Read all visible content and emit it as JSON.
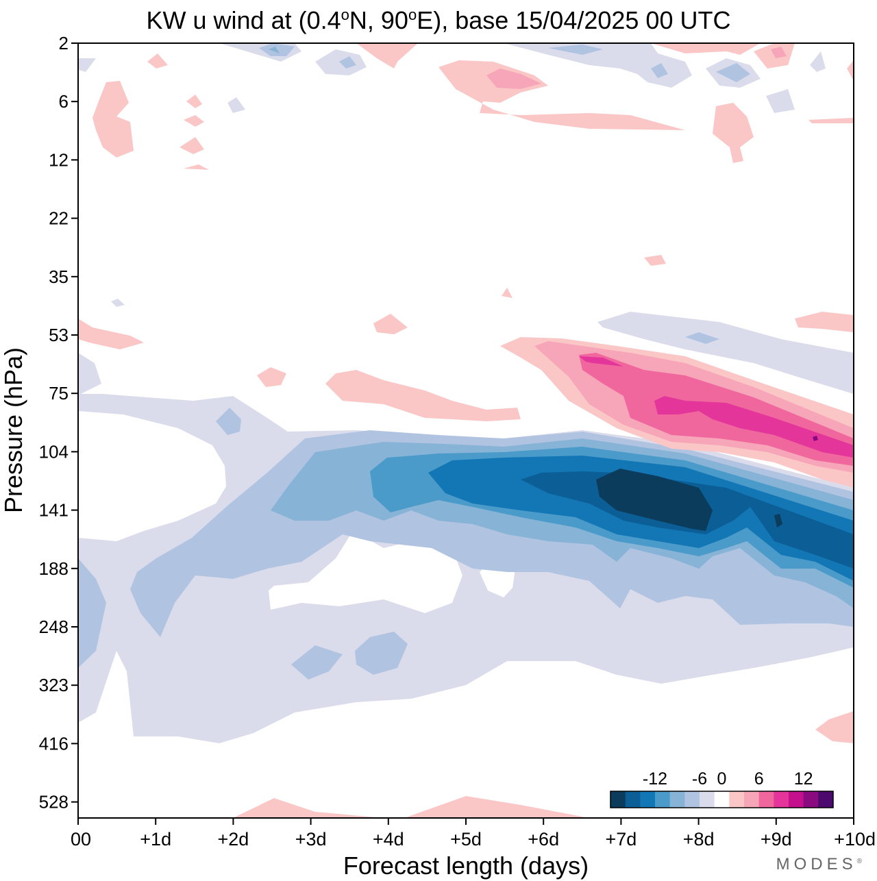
{
  "title": {
    "prefix": "KW u wind at (0.4",
    "deg1": "o",
    "middle": "N, 90",
    "deg2": "o",
    "suffix": "E),  base 15/04/2025  00 UTC"
  },
  "brand": {
    "name": "MODES",
    "mark": "®"
  },
  "chart_data": {
    "type": "heatmap",
    "subtype": "filled-contour (time-pressure cross section)",
    "title": "KW u wind at (0.4°N, 90°E),  base 15/04/2025  00 UTC",
    "xlabel": "Forecast length (days)",
    "ylabel": "Pressure (hPa)",
    "x_ticks": [
      "00",
      "+1d",
      "+2d",
      "+3d",
      "+4d",
      "+5d",
      "+6d",
      "+7d",
      "+8d",
      "+9d",
      "+10d"
    ],
    "x_range_days": [
      0,
      10
    ],
    "y_ticks": [
      "2",
      "6",
      "12",
      "22",
      "35",
      "53",
      "75",
      "104",
      "141",
      "188",
      "248",
      "323",
      "416",
      "528"
    ],
    "y_axis": "pressure, increasing downward (2 hPa at top)",
    "colorbar": {
      "levels": [
        -16,
        -14,
        -12,
        -10,
        -8,
        -6,
        -4,
        -2,
        2,
        4,
        6,
        8,
        10,
        12,
        14,
        16
      ],
      "tick_labels": [
        "-12",
        "-6",
        "0",
        "6",
        "12"
      ],
      "tick_values": [
        -12,
        -6,
        0,
        6,
        12
      ],
      "colors": [
        "#0b3c5c",
        "#0b5f96",
        "#1277b4",
        "#4a9bc9",
        "#86b3d6",
        "#b0c3e0",
        "#dadbeb",
        "#ffffff",
        "#fbc6c6",
        "#f7a5b8",
        "#f0679e",
        "#e3359a",
        "#c4108c",
        "#8a0a7f",
        "#4d0a6e"
      ],
      "placement": "bottom-right inside plot"
    },
    "features": [
      {
        "name": "strongest easterlies",
        "color": "#0b3c5c",
        "band": "below -14",
        "days": [
          7.0,
          8.1
        ],
        "pressure_hPa": [
          120,
          160
        ]
      },
      {
        "name": "strong easterly core",
        "color": "#0b5f96",
        "days": [
          5.3,
          10.0
        ],
        "pressure_hPa": [
          110,
          200
        ]
      },
      {
        "name": "easterly band",
        "color": "#86b3d6",
        "days": [
          2.5,
          10.0
        ],
        "pressure_hPa": [
          100,
          250
        ]
      },
      {
        "name": "westerly core",
        "color": "#e3359a",
        "days": [
          6.5,
          10.0
        ],
        "pressure_hPa": [
          60,
          105
        ]
      },
      {
        "name": "westerly band",
        "color": "#f7a5b8",
        "days": [
          5.5,
          10.0
        ],
        "pressure_hPa": [
          55,
          130
        ]
      },
      {
        "name": "weak easterly envelope",
        "color": "#dadbeb",
        "days": [
          0,
          10.0
        ],
        "pressure_hPa": [
          60,
          420
        ]
      }
    ]
  }
}
